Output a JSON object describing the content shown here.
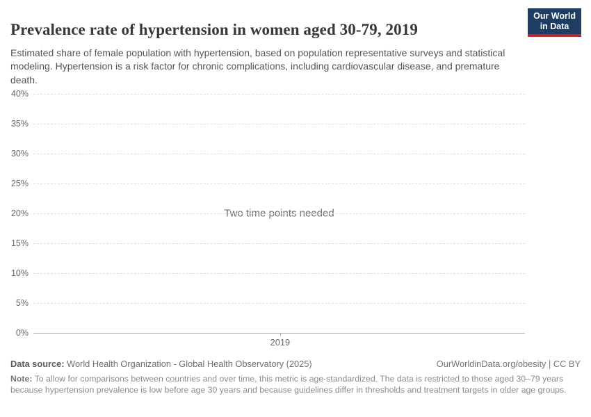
{
  "header": {
    "title": "Prevalence rate of hypertension in women aged 30-79, 2019",
    "subtitle": "Estimated share of female population with hypertension, based on population representative surveys and statistical modeling. Hypertension is a risk factor for chronic complications, including cardiovascular disease, and premature death.",
    "logo": {
      "line1": "Our World",
      "line2": "in Data"
    }
  },
  "chart_data": {
    "type": "line",
    "title": "Prevalence rate of hypertension in women aged 30-79, 2019",
    "series": [],
    "empty_message": "Two time points needed",
    "x_tick_labels": [
      "2019"
    ],
    "x_tick_positions": [
      0.502
    ],
    "y_tick_labels": [
      "0%",
      "5%",
      "10%",
      "15%",
      "20%",
      "25%",
      "30%",
      "35%",
      "40%"
    ],
    "ylim": [
      0,
      40
    ],
    "y_step": 5,
    "xlabel": "",
    "ylabel": "",
    "grid": "horizontal-dashed",
    "legend": "none"
  },
  "footer": {
    "datasource_label": "Data source:",
    "datasource_value": "World Health Organization - Global Health Observatory (2025)",
    "license": "OurWorldinData.org/obesity | CC BY",
    "note_label": "Note:",
    "note_value": "To allow for comparisons between countries and over time, this metric is age-standardized. The data is restricted to those aged 30–79 years because hypertension prevalence is low before age 30 years and because guidelines differ in thresholds and treatment targets in older age groups."
  },
  "colors": {
    "logo_background": "#1d3d63",
    "logo_stripe": "#b52b35",
    "gridline": "#dedede",
    "axis_line": "#b5b5b5",
    "title_text": "#383838",
    "subtitle_text": "#555555",
    "axis_label_text": "#696969",
    "message_text": "#6e6e6e",
    "source_text": "#6e6e6e",
    "note_text": "#8b8b8b"
  }
}
